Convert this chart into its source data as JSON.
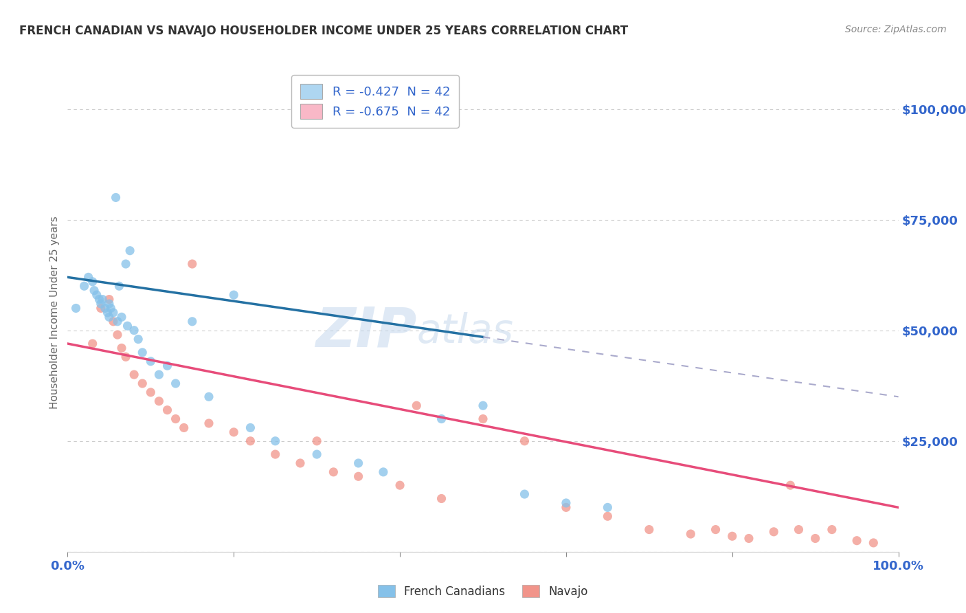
{
  "title": "FRENCH CANADIAN VS NAVAJO HOUSEHOLDER INCOME UNDER 25 YEARS CORRELATION CHART",
  "source": "Source: ZipAtlas.com",
  "ylabel": "Householder Income Under 25 years",
  "yticks": [
    0,
    25000,
    50000,
    75000,
    100000
  ],
  "ytick_labels": [
    "",
    "$25,000",
    "$50,000",
    "$75,000",
    "$100,000"
  ],
  "xtick_positions": [
    0,
    20,
    40,
    60,
    80,
    100
  ],
  "watermark_zip": "ZIP",
  "watermark_atlas": "atlas",
  "legend_entries": [
    {
      "label": "R = -0.427  N = 42",
      "color": "#aed6f1"
    },
    {
      "label": "R = -0.675  N = 42",
      "color": "#f9b8c7"
    }
  ],
  "legend_labels": [
    "French Canadians",
    "Navajo"
  ],
  "fc_color": "#85c1e9",
  "nav_color": "#f1948a",
  "fc_line_color": "#2471a3",
  "nav_line_color": "#e74c7a",
  "dashed_line_color": "#aaaacc",
  "background_color": "#ffffff",
  "grid_color": "#cccccc",
  "title_color": "#333333",
  "source_color": "#888888",
  "axis_label_color": "#3366cc",
  "fc_points_x": [
    1.0,
    2.0,
    2.5,
    3.0,
    3.2,
    3.5,
    3.8,
    4.0,
    4.2,
    4.5,
    4.8,
    5.0,
    5.0,
    5.2,
    5.5,
    5.8,
    6.0,
    6.2,
    6.5,
    7.0,
    7.2,
    7.5,
    8.0,
    8.5,
    9.0,
    10.0,
    11.0,
    12.0,
    13.0,
    15.0,
    17.0,
    20.0,
    22.0,
    25.0,
    30.0,
    35.0,
    38.0,
    45.0,
    50.0,
    55.0,
    60.0,
    65.0
  ],
  "fc_points_y": [
    55000,
    60000,
    62000,
    61000,
    59000,
    58000,
    57000,
    56000,
    57000,
    55000,
    54000,
    53000,
    56000,
    55000,
    54000,
    80000,
    52000,
    60000,
    53000,
    65000,
    51000,
    68000,
    50000,
    48000,
    45000,
    43000,
    40000,
    42000,
    38000,
    52000,
    35000,
    58000,
    28000,
    25000,
    22000,
    20000,
    18000,
    30000,
    33000,
    13000,
    11000,
    10000
  ],
  "nav_points_x": [
    3.0,
    4.0,
    5.0,
    5.5,
    6.0,
    6.5,
    7.0,
    8.0,
    9.0,
    10.0,
    11.0,
    12.0,
    13.0,
    14.0,
    15.0,
    17.0,
    20.0,
    22.0,
    25.0,
    28.0,
    30.0,
    32.0,
    35.0,
    40.0,
    42.0,
    45.0,
    50.0,
    55.0,
    60.0,
    65.0,
    70.0,
    75.0,
    78.0,
    80.0,
    82.0,
    85.0,
    87.0,
    88.0,
    90.0,
    92.0,
    95.0,
    97.0
  ],
  "nav_points_y": [
    47000,
    55000,
    57000,
    52000,
    49000,
    46000,
    44000,
    40000,
    38000,
    36000,
    34000,
    32000,
    30000,
    28000,
    65000,
    29000,
    27000,
    25000,
    22000,
    20000,
    25000,
    18000,
    17000,
    15000,
    33000,
    12000,
    30000,
    25000,
    10000,
    8000,
    5000,
    4000,
    5000,
    3500,
    3000,
    4500,
    15000,
    5000,
    3000,
    5000,
    2500,
    2000
  ],
  "fc_line_x0": 0,
  "fc_line_x1": 100,
  "fc_line_y0": 62000,
  "fc_line_y1": 35000,
  "fc_solid_end": 50,
  "nav_line_y0": 47000,
  "nav_line_y1": 10000,
  "nav_first_point_x": 3.0,
  "nav_first_point_y": 47000
}
